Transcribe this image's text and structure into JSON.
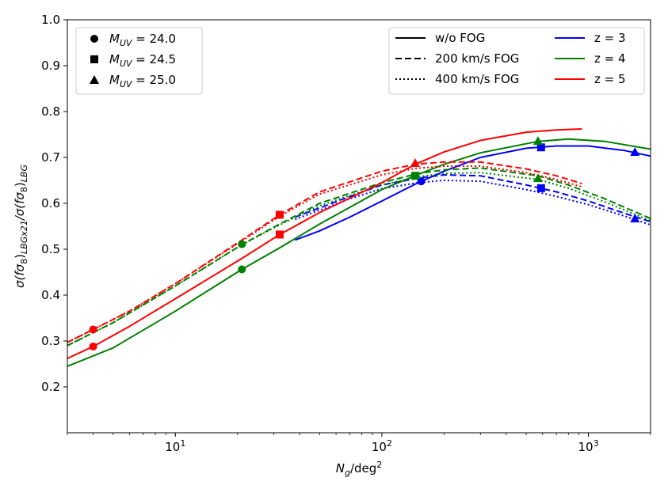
{
  "chart_data": {
    "type": "line",
    "x_scale": "log",
    "xlim": [
      3,
      2000
    ],
    "ylim": [
      0.1,
      1.0
    ],
    "xlabel": {
      "main": "N",
      "sub": "g",
      "rest": "/deg",
      "sup": "2"
    },
    "ylabel": {
      "parts": [
        "σ(fσ",
        "8",
        ")",
        "LBGx21",
        "/σ(fσ",
        "8",
        ")",
        "LBG"
      ]
    },
    "x_ticks": [
      {
        "value": 10,
        "base": "10",
        "exp": "1"
      },
      {
        "value": 100,
        "base": "10",
        "exp": "2"
      },
      {
        "value": 1000,
        "base": "10",
        "exp": "3"
      }
    ],
    "y_ticks": [
      0.2,
      0.3,
      0.4,
      0.5,
      0.6,
      0.7,
      0.8,
      0.9,
      1.0
    ],
    "y_tick_labels": [
      "0.2",
      "0.3",
      "0.4",
      "0.5",
      "0.6",
      "0.7",
      "0.8",
      "0.9",
      "1.0"
    ],
    "colors": {
      "z3": "#0000ff",
      "z4": "#008000",
      "z5": "#ff0000"
    },
    "legend_marker": {
      "placement": "top-left",
      "entries": [
        {
          "marker": "circle",
          "label_main": "M",
          "label_sub": "UV",
          "label_rest": " =  24.0"
        },
        {
          "marker": "square",
          "label_main": "M",
          "label_sub": "UV",
          "label_rest": " =  24.5"
        },
        {
          "marker": "triangle",
          "label_main": "M",
          "label_sub": "UV",
          "label_rest": " =  25.0"
        }
      ]
    },
    "legend_lines": {
      "placement": "top-right",
      "styles": [
        {
          "style": "solid",
          "label": "w/o FOG"
        },
        {
          "style": "dashed",
          "label": "200 km/s FOG"
        },
        {
          "style": "dotted",
          "label": "400 km/s FOG"
        }
      ],
      "redshifts": [
        {
          "color_key": "z3",
          "label": "z = 3"
        },
        {
          "color_key": "z4",
          "label": "z = 4"
        },
        {
          "color_key": "z5",
          "label": "z = 5"
        }
      ]
    },
    "series": [
      {
        "z": "z3",
        "style": "solid",
        "x": [
          38,
          50,
          70,
          100,
          150,
          200,
          300,
          500,
          700,
          1000,
          1500,
          2000
        ],
        "y": [
          0.52,
          0.54,
          0.57,
          0.605,
          0.645,
          0.67,
          0.7,
          0.72,
          0.725,
          0.725,
          0.715,
          0.703
        ]
      },
      {
        "z": "z3",
        "style": "dashed",
        "x": [
          38,
          50,
          70,
          100,
          150,
          200,
          300,
          500,
          700,
          1000,
          1500,
          2000
        ],
        "y": [
          0.57,
          0.59,
          0.615,
          0.64,
          0.655,
          0.662,
          0.66,
          0.64,
          0.625,
          0.605,
          0.578,
          0.56
        ]
      },
      {
        "z": "z3",
        "style": "dotted",
        "x": [
          38,
          50,
          70,
          100,
          150,
          200,
          300,
          500,
          700,
          1000,
          1500,
          2000
        ],
        "y": [
          0.565,
          0.585,
          0.61,
          0.632,
          0.645,
          0.65,
          0.648,
          0.63,
          0.615,
          0.597,
          0.572,
          0.553
        ]
      },
      {
        "z": "z4",
        "style": "solid",
        "x": [
          3,
          5,
          10,
          21,
          32,
          50,
          100,
          150,
          200,
          300,
          570,
          800,
          1200,
          2000
        ],
        "y": [
          0.245,
          0.285,
          0.365,
          0.456,
          0.503,
          0.555,
          0.63,
          0.663,
          0.685,
          0.71,
          0.735,
          0.74,
          0.735,
          0.718
        ]
      },
      {
        "z": "z4",
        "style": "dashed",
        "x": [
          3,
          5,
          10,
          21,
          32,
          50,
          100,
          150,
          200,
          300,
          570,
          800,
          1200,
          2000
        ],
        "y": [
          0.29,
          0.34,
          0.42,
          0.51,
          0.555,
          0.6,
          0.645,
          0.665,
          0.673,
          0.677,
          0.66,
          0.64,
          0.61,
          0.567
        ]
      },
      {
        "z": "z4",
        "style": "dotted",
        "x": [
          3,
          5,
          10,
          21,
          32,
          50,
          100,
          150,
          200,
          300,
          570,
          800,
          1200,
          2000
        ],
        "y": [
          0.29,
          0.34,
          0.42,
          0.51,
          0.553,
          0.595,
          0.64,
          0.658,
          0.665,
          0.667,
          0.652,
          0.633,
          0.603,
          0.562
        ]
      },
      {
        "z": "z5",
        "style": "solid",
        "x": [
          3,
          4,
          6,
          10,
          21,
          32,
          50,
          100,
          145,
          200,
          300,
          500,
          700,
          930
        ],
        "y": [
          0.262,
          0.288,
          0.332,
          0.392,
          0.48,
          0.532,
          0.58,
          0.645,
          0.685,
          0.712,
          0.737,
          0.755,
          0.76,
          0.762
        ]
      },
      {
        "z": "z5",
        "style": "dashed",
        "x": [
          3,
          4,
          6,
          10,
          21,
          32,
          50,
          100,
          145,
          200,
          300,
          500,
          700,
          930
        ],
        "y": [
          0.297,
          0.325,
          0.365,
          0.425,
          0.52,
          0.575,
          0.625,
          0.67,
          0.685,
          0.69,
          0.69,
          0.675,
          0.66,
          0.643
        ]
      },
      {
        "z": "z5",
        "style": "dotted",
        "x": [
          3,
          4,
          6,
          10,
          21,
          32,
          50,
          100,
          145,
          200,
          300,
          500,
          700,
          930
        ],
        "y": [
          0.297,
          0.325,
          0.365,
          0.425,
          0.518,
          0.572,
          0.62,
          0.662,
          0.676,
          0.681,
          0.681,
          0.667,
          0.652,
          0.636
        ]
      }
    ],
    "points": [
      {
        "z": "z3",
        "marker": "circle",
        "x": 155,
        "y": 0.648
      },
      {
        "z": "z3",
        "marker": "square",
        "x": 590,
        "y": 0.722
      },
      {
        "z": "z3",
        "marker": "square",
        "x": 590,
        "y": 0.633
      },
      {
        "z": "z3",
        "marker": "triangle",
        "x": 1680,
        "y": 0.712
      },
      {
        "z": "z3",
        "marker": "triangle",
        "x": 1680,
        "y": 0.567
      },
      {
        "z": "z4",
        "marker": "circle",
        "x": 21,
        "y": 0.456
      },
      {
        "z": "z4",
        "marker": "circle",
        "x": 21,
        "y": 0.511
      },
      {
        "z": "z4",
        "marker": "square",
        "x": 145,
        "y": 0.66
      },
      {
        "z": "z4",
        "marker": "triangle",
        "x": 570,
        "y": 0.736
      },
      {
        "z": "z4",
        "marker": "triangle",
        "x": 570,
        "y": 0.655
      },
      {
        "z": "z5",
        "marker": "circle",
        "x": 4,
        "y": 0.288
      },
      {
        "z": "z5",
        "marker": "circle",
        "x": 4,
        "y": 0.325
      },
      {
        "z": "z5",
        "marker": "square",
        "x": 32,
        "y": 0.532
      },
      {
        "z": "z5",
        "marker": "square",
        "x": 32,
        "y": 0.575
      },
      {
        "z": "z5",
        "marker": "triangle",
        "x": 145,
        "y": 0.688
      }
    ]
  }
}
